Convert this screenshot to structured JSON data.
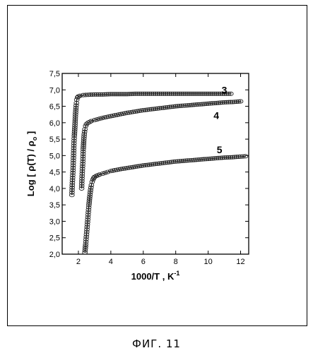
{
  "figure": {
    "caption": "ФИГ. 11"
  },
  "chart_data": {
    "type": "scatter",
    "title": "",
    "xlabel": "1000/T , K",
    "xlabel_sup": "-1",
    "ylabel": "Log [ ρ(T) / ρ",
    "ylabel_sub": "o",
    "ylabel_tail": " ]",
    "xlim": [
      1,
      12.5
    ],
    "ylim": [
      2.0,
      7.5
    ],
    "x_ticks": [
      2,
      4,
      6,
      8,
      10,
      12
    ],
    "y_ticks": [
      2.0,
      2.5,
      3.0,
      3.5,
      4.0,
      4.5,
      5.0,
      5.5,
      6.0,
      6.5,
      7.0,
      7.5
    ],
    "y_tick_labels": [
      "2,0",
      "2,5",
      "3,0",
      "3,5",
      "4,0",
      "4,5",
      "5,0",
      "5,5",
      "6,0",
      "6,5",
      "7,0",
      "7,5"
    ],
    "grid": false,
    "legend": "none",
    "series": [
      {
        "name": "3",
        "label_at": [
          11.0,
          7.0
        ],
        "x": [
          1.6,
          1.62,
          1.65,
          1.68,
          1.7,
          1.72,
          1.75,
          1.78,
          1.8,
          1.82,
          1.85,
          1.88,
          1.9,
          1.95,
          2.0,
          2.1,
          2.3,
          2.6,
          3.0,
          3.5,
          4.0,
          4.5,
          5.0,
          5.5,
          6.0,
          6.5,
          7.0,
          7.5,
          8.0,
          8.5,
          9.0,
          9.5,
          10.0,
          10.5,
          11.0,
          11.4
        ],
        "y": [
          3.8,
          4.1,
          4.4,
          4.7,
          5.0,
          5.3,
          5.6,
          5.85,
          6.05,
          6.25,
          6.45,
          6.6,
          6.7,
          6.77,
          6.8,
          6.82,
          6.84,
          6.85,
          6.86,
          6.86,
          6.87,
          6.87,
          6.87,
          6.88,
          6.88,
          6.88,
          6.88,
          6.88,
          6.88,
          6.88,
          6.88,
          6.88,
          6.88,
          6.88,
          6.88,
          6.88
        ]
      },
      {
        "name": "4",
        "label_at": [
          10.5,
          6.22
        ],
        "x": [
          2.2,
          2.22,
          2.25,
          2.28,
          2.3,
          2.33,
          2.36,
          2.4,
          2.45,
          2.5,
          2.6,
          2.8,
          3.0,
          3.3,
          3.6,
          4.0,
          4.5,
          5.0,
          5.5,
          6.0,
          6.5,
          7.0,
          7.5,
          8.0,
          8.5,
          9.0,
          9.5,
          10.0,
          10.5,
          11.0,
          11.5,
          12.0
        ],
        "y": [
          4.0,
          4.3,
          4.6,
          4.9,
          5.2,
          5.45,
          5.65,
          5.8,
          5.9,
          5.96,
          6.0,
          6.05,
          6.08,
          6.12,
          6.16,
          6.2,
          6.25,
          6.3,
          6.34,
          6.38,
          6.41,
          6.44,
          6.47,
          6.5,
          6.52,
          6.54,
          6.56,
          6.58,
          6.6,
          6.62,
          6.63,
          6.65
        ]
      },
      {
        "name": "5",
        "label_at": [
          10.7,
          5.18
        ],
        "x": [
          2.4,
          2.45,
          2.5,
          2.55,
          2.6,
          2.65,
          2.7,
          2.75,
          2.8,
          2.85,
          2.9,
          2.95,
          3.0,
          3.1,
          3.2,
          3.3,
          3.5,
          3.8,
          4.0,
          4.5,
          5.0,
          5.5,
          6.0,
          6.5,
          7.0,
          7.5,
          8.0,
          8.5,
          9.0,
          9.5,
          10.0,
          10.5,
          11.0,
          11.5,
          12.0,
          12.3
        ],
        "y": [
          2.05,
          2.3,
          2.6,
          2.9,
          3.2,
          3.5,
          3.75,
          3.95,
          4.1,
          4.2,
          4.27,
          4.32,
          4.35,
          4.38,
          4.4,
          4.42,
          4.45,
          4.5,
          4.53,
          4.58,
          4.62,
          4.66,
          4.7,
          4.73,
          4.76,
          4.79,
          4.82,
          4.84,
          4.86,
          4.88,
          4.9,
          4.92,
          4.94,
          4.95,
          4.97,
          4.98
        ]
      }
    ]
  }
}
